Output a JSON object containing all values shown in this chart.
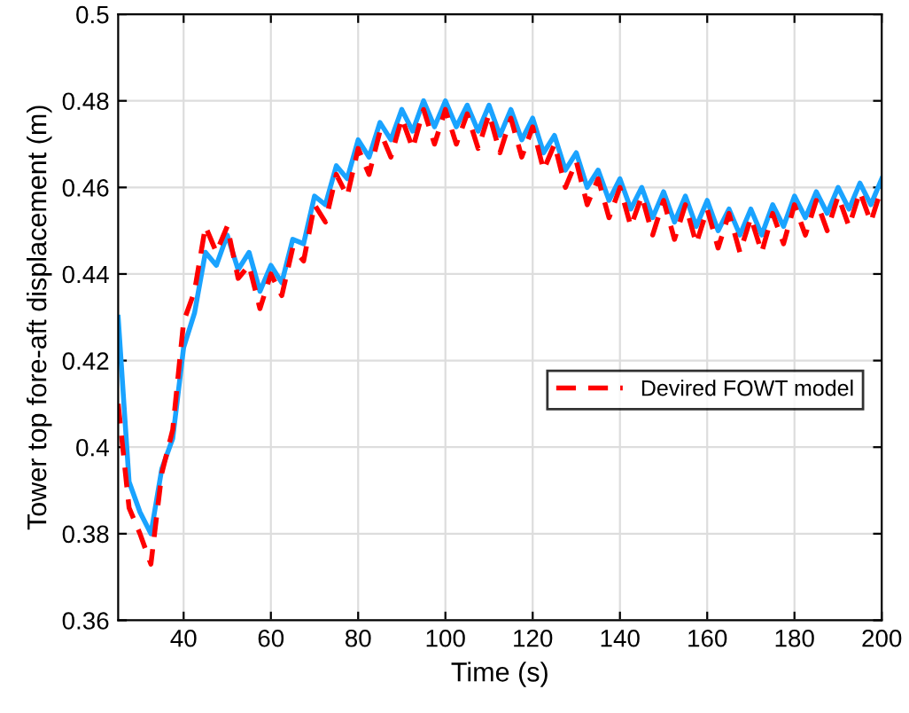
{
  "chart_data": {
    "type": "line",
    "xlabel": "Time (s)",
    "ylabel": "Tower top fore-aft displacement (m)",
    "x": [
      25,
      27.5,
      30,
      32.5,
      35,
      37.5,
      40,
      42.5,
      45,
      47.5,
      50,
      52.5,
      55,
      57.5,
      60,
      62.5,
      65,
      67.5,
      70,
      72.5,
      75,
      77.5,
      80,
      82.5,
      85,
      87.5,
      90,
      92.5,
      95,
      97.5,
      100,
      102.5,
      105,
      107.5,
      110,
      112.5,
      115,
      117.5,
      120,
      122.5,
      125,
      127.5,
      130,
      132.5,
      135,
      137.5,
      140,
      142.5,
      145,
      147.5,
      150,
      152.5,
      155,
      157.5,
      160,
      162.5,
      165,
      167.5,
      170,
      172.5,
      175,
      177.5,
      180,
      182.5,
      185,
      187.5,
      190,
      192.5,
      195,
      197.5,
      200
    ],
    "series": [
      {
        "color": "#1aa3ff",
        "line_style": "solid",
        "values": [
          0.43,
          0.392,
          0.385,
          0.38,
          0.395,
          0.402,
          0.423,
          0.431,
          0.445,
          0.442,
          0.449,
          0.441,
          0.445,
          0.436,
          0.442,
          0.438,
          0.448,
          0.447,
          0.458,
          0.456,
          0.465,
          0.462,
          0.471,
          0.467,
          0.475,
          0.471,
          0.478,
          0.473,
          0.48,
          0.474,
          0.48,
          0.474,
          0.479,
          0.473,
          0.479,
          0.472,
          0.478,
          0.471,
          0.476,
          0.468,
          0.472,
          0.464,
          0.468,
          0.46,
          0.464,
          0.457,
          0.462,
          0.455,
          0.46,
          0.453,
          0.459,
          0.452,
          0.458,
          0.451,
          0.457,
          0.45,
          0.455,
          0.449,
          0.455,
          0.449,
          0.456,
          0.451,
          0.458,
          0.453,
          0.459,
          0.454,
          0.46,
          0.455,
          0.461,
          0.456,
          0.462
        ]
      },
      {
        "name": "Devired FOWT model",
        "color": "#ff0000",
        "line_style": "dashed",
        "values": [
          0.41,
          0.386,
          0.38,
          0.373,
          0.394,
          0.404,
          0.429,
          0.436,
          0.451,
          0.445,
          0.451,
          0.439,
          0.442,
          0.432,
          0.44,
          0.435,
          0.446,
          0.443,
          0.456,
          0.452,
          0.463,
          0.458,
          0.469,
          0.463,
          0.473,
          0.467,
          0.476,
          0.469,
          0.478,
          0.47,
          0.478,
          0.47,
          0.477,
          0.469,
          0.477,
          0.468,
          0.476,
          0.467,
          0.474,
          0.464,
          0.47,
          0.46,
          0.466,
          0.456,
          0.462,
          0.453,
          0.46,
          0.451,
          0.458,
          0.449,
          0.457,
          0.448,
          0.456,
          0.447,
          0.455,
          0.446,
          0.454,
          0.445,
          0.453,
          0.445,
          0.454,
          0.447,
          0.456,
          0.449,
          0.457,
          0.45,
          0.458,
          0.451,
          0.459,
          0.452,
          0.46
        ]
      }
    ],
    "xlim": [
      25,
      200
    ],
    "xticks": [
      40,
      60,
      80,
      100,
      120,
      140,
      160,
      180,
      200
    ],
    "ylim": [
      0.36,
      0.5
    ],
    "yticks": [
      0.36,
      0.38,
      0.4,
      0.42,
      0.44,
      0.46,
      0.48,
      0.5
    ],
    "grid": true,
    "legend": "right"
  }
}
